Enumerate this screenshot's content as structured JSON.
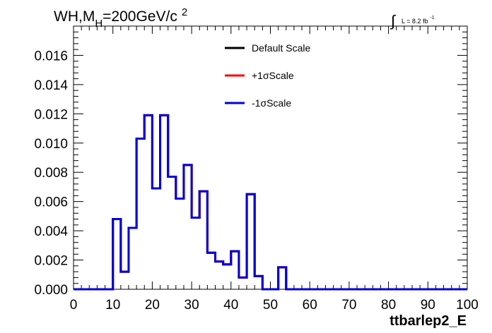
{
  "chart_data": {
    "type": "histogram",
    "title_main": "WH,M",
    "title_sub": "H",
    "title_rest": "=200GeV/c",
    "title_sup": "2",
    "lumi_text": "L = 8.2 fb",
    "lumi_sup": "-1",
    "xlabel": "ttbarlep2_E",
    "xlim": [
      0,
      100
    ],
    "ylim": [
      0,
      0.018
    ],
    "xticks": [
      "0",
      "10",
      "20",
      "30",
      "40",
      "50",
      "60",
      "70",
      "80",
      "90",
      "100"
    ],
    "yticks": [
      "0.000",
      "0.002",
      "0.004",
      "0.006",
      "0.008",
      "0.010",
      "0.012",
      "0.014",
      "0.016"
    ],
    "bin_width": 2,
    "series": [
      {
        "name": "Default Scale",
        "color": "#000000",
        "values": [
          0,
          0,
          0,
          0,
          0,
          0.0048,
          0.0012,
          0.0042,
          0.0103,
          0.0119,
          0.0069,
          0.0119,
          0.0077,
          0.0062,
          0.0085,
          0.0049,
          0.0067,
          0.0025,
          0.0019,
          0.0017,
          0.0026,
          0.0008,
          0.0065,
          0.0009,
          0,
          0,
          0.0015,
          0,
          0,
          0,
          0,
          0,
          0,
          0,
          0,
          0,
          0,
          0,
          0,
          0,
          0,
          0,
          0,
          0,
          0,
          0,
          0,
          0,
          0,
          0
        ]
      },
      {
        "name": "+1σScale",
        "color": "#ff0000",
        "values": [
          0,
          0,
          0,
          0,
          0,
          0.0048,
          0.0012,
          0.0042,
          0.0103,
          0.0119,
          0.0069,
          0.0119,
          0.0077,
          0.0062,
          0.0085,
          0.0049,
          0.0067,
          0.0025,
          0.0019,
          0.0017,
          0.0026,
          0.0008,
          0.0065,
          0.0009,
          0,
          0,
          0.0015,
          0,
          0,
          0,
          0,
          0,
          0,
          0,
          0,
          0,
          0,
          0,
          0,
          0,
          0,
          0,
          0,
          0,
          0,
          0,
          0,
          0,
          0,
          0
        ]
      },
      {
        "name": "-1σScale",
        "color": "#0000dd",
        "values": [
          0,
          0,
          0,
          0,
          0,
          0.0048,
          0.0012,
          0.0042,
          0.0103,
          0.0119,
          0.0069,
          0.0119,
          0.0077,
          0.0062,
          0.0085,
          0.0049,
          0.0067,
          0.0025,
          0.0019,
          0.0017,
          0.0026,
          0.0008,
          0.0065,
          0.0009,
          0,
          0,
          0.0015,
          0,
          0,
          0,
          0,
          0,
          0,
          0,
          0,
          0,
          0,
          0,
          0,
          0,
          0,
          0,
          0,
          0,
          0,
          0,
          0,
          0,
          0,
          0
        ]
      }
    ],
    "legend_position": "top-center",
    "grid": false
  }
}
